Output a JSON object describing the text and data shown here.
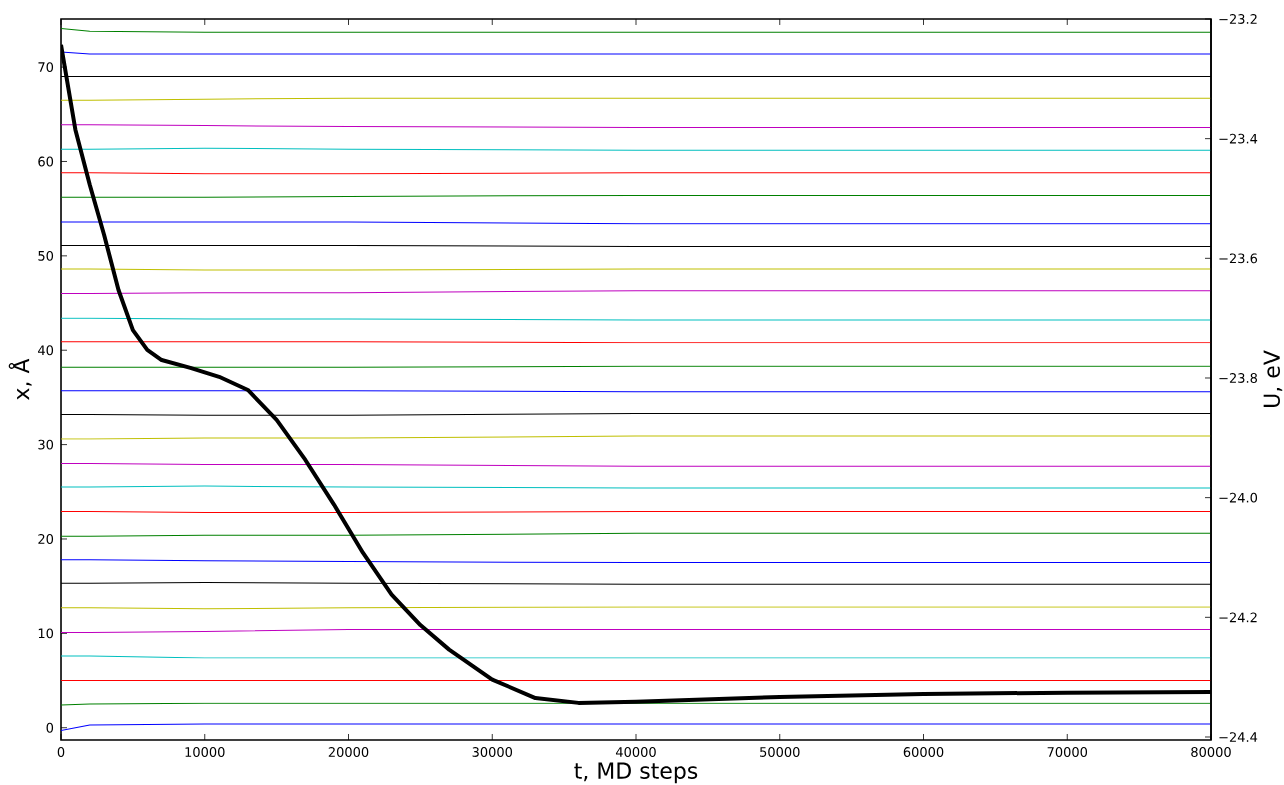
{
  "chart_data": {
    "type": "line",
    "xlabel": "t, MD steps",
    "ylabel": "x, Å",
    "y2label": "U, eV",
    "x": [
      0,
      2000,
      10000,
      20000,
      40000,
      80000
    ],
    "xlim": [
      0,
      80000
    ],
    "xticks": [
      0,
      10000,
      20000,
      30000,
      40000,
      50000,
      60000,
      70000,
      80000
    ],
    "ylim": [
      -1.3,
      75.1
    ],
    "yticks": [
      0,
      10,
      20,
      30,
      40,
      50,
      60,
      70
    ],
    "y2lim": [
      -24.405,
      -23.2
    ],
    "y2ticks": [
      {
        "value": -24.4,
        "label": "−24.4"
      },
      {
        "value": -24.2,
        "label": "−24.2"
      },
      {
        "value": -24.0,
        "label": "−24.0"
      },
      {
        "value": -23.8,
        "label": "−23.8"
      },
      {
        "value": -23.6,
        "label": "−23.6"
      },
      {
        "value": -23.4,
        "label": "−23.4"
      },
      {
        "value": -23.2,
        "label": "−23.2"
      }
    ],
    "series": [
      {
        "color": "#0000ff",
        "values": [
          -0.3,
          0.3,
          0.4,
          0.4,
          0.4,
          0.4
        ]
      },
      {
        "color": "#008000",
        "values": [
          2.4,
          2.5,
          2.6,
          2.6,
          2.6,
          2.6
        ]
      },
      {
        "color": "#ff0000",
        "values": [
          5.0,
          5.0,
          5.0,
          5.0,
          5.0,
          5.0
        ]
      },
      {
        "color": "#00bfbf",
        "values": [
          7.6,
          7.6,
          7.4,
          7.4,
          7.4,
          7.4
        ]
      },
      {
        "color": "#bf00bf",
        "values": [
          10.1,
          10.1,
          10.2,
          10.4,
          10.4,
          10.4
        ]
      },
      {
        "color": "#bfbf00",
        "values": [
          12.7,
          12.7,
          12.6,
          12.7,
          12.8,
          12.8
        ]
      },
      {
        "color": "#000000",
        "values": [
          15.3,
          15.3,
          15.4,
          15.3,
          15.2,
          15.2
        ]
      },
      {
        "color": "#0000ff",
        "values": [
          17.8,
          17.8,
          17.7,
          17.6,
          17.5,
          17.5
        ]
      },
      {
        "color": "#008000",
        "values": [
          20.3,
          20.3,
          20.4,
          20.4,
          20.6,
          20.6
        ]
      },
      {
        "color": "#ff0000",
        "values": [
          22.9,
          22.9,
          22.8,
          22.8,
          22.9,
          22.9
        ]
      },
      {
        "color": "#00bfbf",
        "values": [
          25.5,
          25.5,
          25.6,
          25.5,
          25.4,
          25.4
        ]
      },
      {
        "color": "#bf00bf",
        "values": [
          28.0,
          28.0,
          27.9,
          27.9,
          27.7,
          27.7
        ]
      },
      {
        "color": "#bfbf00",
        "values": [
          30.6,
          30.6,
          30.7,
          30.7,
          30.9,
          30.9
        ]
      },
      {
        "color": "#000000",
        "values": [
          33.2,
          33.2,
          33.1,
          33.1,
          33.3,
          33.3
        ]
      },
      {
        "color": "#0000ff",
        "values": [
          35.7,
          35.7,
          35.7,
          35.7,
          35.6,
          35.6
        ]
      },
      {
        "color": "#008000",
        "values": [
          38.2,
          38.2,
          38.2,
          38.2,
          38.3,
          38.3
        ]
      },
      {
        "color": "#ff0000",
        "values": [
          40.9,
          40.9,
          40.9,
          40.9,
          40.8,
          40.8
        ]
      },
      {
        "color": "#00bfbf",
        "values": [
          43.4,
          43.4,
          43.3,
          43.3,
          43.2,
          43.2
        ]
      },
      {
        "color": "#bf00bf",
        "values": [
          46.0,
          46.0,
          46.1,
          46.1,
          46.3,
          46.3
        ]
      },
      {
        "color": "#bfbf00",
        "values": [
          48.6,
          48.6,
          48.5,
          48.5,
          48.6,
          48.6
        ]
      },
      {
        "color": "#000000",
        "values": [
          51.1,
          51.1,
          51.1,
          51.1,
          51.0,
          51.0
        ]
      },
      {
        "color": "#0000ff",
        "values": [
          53.6,
          53.6,
          53.6,
          53.6,
          53.4,
          53.4
        ]
      },
      {
        "color": "#008000",
        "values": [
          56.2,
          56.2,
          56.2,
          56.3,
          56.4,
          56.4
        ]
      },
      {
        "color": "#ff0000",
        "values": [
          58.8,
          58.8,
          58.7,
          58.7,
          58.8,
          58.8
        ]
      },
      {
        "color": "#00bfbf",
        "values": [
          61.3,
          61.3,
          61.4,
          61.3,
          61.2,
          61.2
        ]
      },
      {
        "color": "#bf00bf",
        "values": [
          63.9,
          63.9,
          63.8,
          63.7,
          63.6,
          63.6
        ]
      },
      {
        "color": "#bfbf00",
        "values": [
          66.5,
          66.5,
          66.6,
          66.7,
          66.7,
          66.7
        ]
      },
      {
        "color": "#000000",
        "values": [
          69.0,
          69.0,
          69.0,
          69.0,
          69.0,
          69.0
        ]
      },
      {
        "color": "#0000ff",
        "values": [
          71.6,
          71.4,
          71.4,
          71.4,
          71.4,
          71.4
        ]
      },
      {
        "color": "#008000",
        "values": [
          74.1,
          73.8,
          73.7,
          73.7,
          73.7,
          73.7
        ]
      },
      {
        "color": "#000000",
        "axis": "y2",
        "x": [
          0,
          1000,
          2000,
          3000,
          4000,
          5000,
          6000,
          7000,
          9000,
          11000,
          13000,
          15000,
          17000,
          19000,
          21000,
          23000,
          25000,
          27000,
          30000,
          33000,
          36000,
          40000,
          50000,
          60000,
          70000,
          80000
        ],
        "values": [
          -23.243,
          -23.385,
          -23.477,
          -23.561,
          -23.653,
          -23.72,
          -23.753,
          -23.77,
          -23.783,
          -23.798,
          -23.82,
          -23.87,
          -23.937,
          -24.012,
          -24.092,
          -24.162,
          -24.213,
          -24.254,
          -24.304,
          -24.335,
          -24.343,
          -24.341,
          -24.333,
          -24.328,
          -24.326,
          -24.325
        ]
      }
    ]
  }
}
